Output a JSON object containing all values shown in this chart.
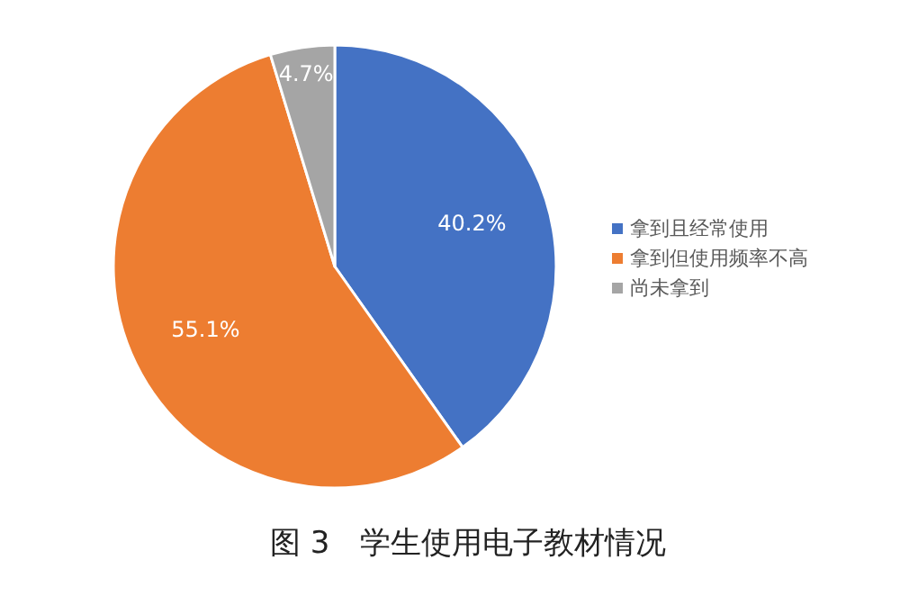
{
  "chart_data": {
    "type": "pie",
    "title": "图 3　学生使用电子教材情况",
    "categories": [
      "拿到且经常使用",
      "拿到但使用频率不高",
      "尚未拿到"
    ],
    "values": [
      40.2,
      55.1,
      4.7
    ],
    "value_labels": [
      "40.2%",
      "55.1%",
      "4.7%"
    ],
    "colors": [
      "#4472c4",
      "#ed7d31",
      "#a5a5a5"
    ],
    "legend": "right"
  }
}
